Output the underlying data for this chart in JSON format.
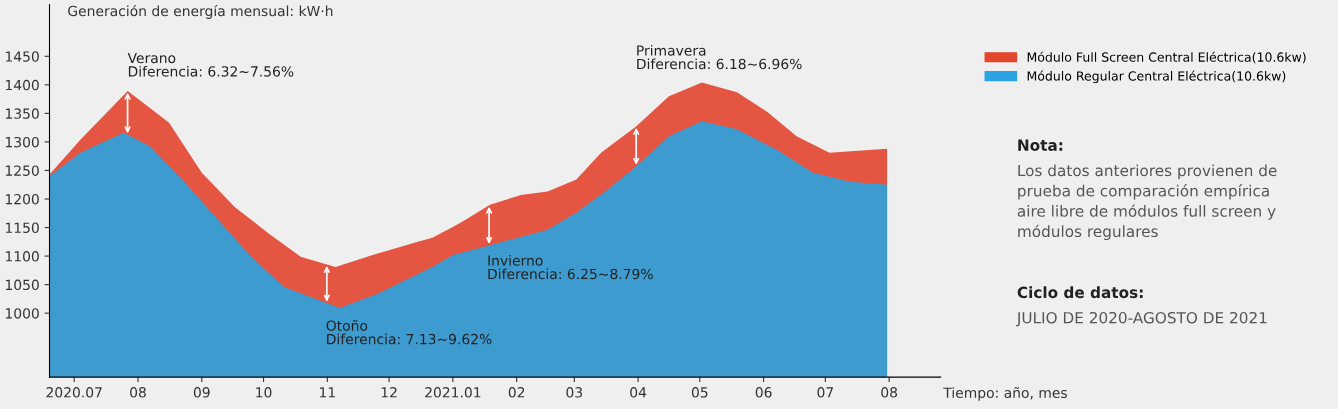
{
  "chart_data": {
    "type": "area",
    "ylabel": "Generación de energía mensual: kW·h",
    "xlabel": "Tiempo: año, mes",
    "series": [
      {
        "name": "Módulo Full Screen Central Eléctrica(10.6kw)",
        "color": "#e3452f",
        "x": [
          "2020-06-19",
          "2020-07-04",
          "2020-07-27",
          "2020-08-16",
          "2020-09-01",
          "2020-09-17",
          "2020-10-03",
          "2020-10-19",
          "2020-11-05",
          "2020-11-23",
          "2020-12-15",
          "2020-12-22",
          "2021-01-01",
          "2021-01-07",
          "2021-01-19",
          "2021-02-03",
          "2021-02-16",
          "2021-03-02",
          "2021-03-14",
          "2021-03-31",
          "2021-04-16",
          "2021-05-02",
          "2021-05-19",
          "2021-06-03",
          "2021-06-17",
          "2021-07-03",
          "2021-07-31"
        ],
        "values": [
          1243,
          1304,
          1389,
          1334,
          1246,
          1186,
          1141,
          1099,
          1081,
          1102,
          1125,
          1132,
          1151,
          1163,
          1190,
          1207,
          1213,
          1234,
          1281,
          1327,
          1380,
          1404,
          1387,
          1352,
          1310,
          1281,
          1288
        ]
      },
      {
        "name": "Módulo Regular Central Eléctrica(10.6kw)",
        "color": "#2aa3e0",
        "x": [
          "2020-06-19",
          "2020-07-04",
          "2020-07-25",
          "2020-08-07",
          "2020-08-24",
          "2020-09-09",
          "2020-09-25",
          "2020-10-11",
          "2020-11-07",
          "2020-11-26",
          "2020-12-22",
          "2021-01-01",
          "2021-01-20",
          "2021-02-16",
          "2021-03-02",
          "2021-03-16",
          "2021-03-31",
          "2021-04-16",
          "2021-05-02",
          "2021-05-19",
          "2021-06-07",
          "2021-06-25",
          "2021-07-13",
          "2021-07-31"
        ],
        "values": [
          1240,
          1281,
          1316,
          1292,
          1228,
          1163,
          1099,
          1046,
          1009,
          1035,
          1081,
          1102,
          1120,
          1146,
          1176,
          1213,
          1257,
          1310,
          1336,
          1322,
          1287,
          1246,
          1230,
          1225
        ]
      }
    ],
    "xlim": [
      "2020-06-19",
      "2021-08-26"
    ],
    "xticks": [
      {
        "value": "2020-07",
        "label": "2020.07"
      },
      {
        "value": "2020-08",
        "label": "08"
      },
      {
        "value": "2020-09",
        "label": "09"
      },
      {
        "value": "2020-10",
        "label": "10"
      },
      {
        "value": "2020-11",
        "label": "11"
      },
      {
        "value": "2020-12",
        "label": "12"
      },
      {
        "value": "2021-01",
        "label": "2021.01"
      },
      {
        "value": "2021-02",
        "label": "02"
      },
      {
        "value": "2021-03",
        "label": "03"
      },
      {
        "value": "2021-04",
        "label": "04"
      },
      {
        "value": "2021-05",
        "label": "05"
      },
      {
        "value": "2021-06",
        "label": "06"
      },
      {
        "value": "2021-07",
        "label": "07"
      },
      {
        "value": "2021-08",
        "label": "08"
      }
    ],
    "ylim": [
      888,
      1540
    ],
    "yticks": [
      1000,
      1050,
      1100,
      1150,
      1200,
      1250,
      1300,
      1350,
      1400,
      1450
    ],
    "legend": "top right",
    "annotations": [
      "Verano\nDiferencia: 6.32~7.56%",
      "Otoño\nDiferencia: 7.13~9.62%",
      "Invierno\nDiferencia: 6.25~8.79%",
      "Primavera\nDiferencia: 6.18~6.96%",
      "Nota:",
      "Los datos anteriores provienen de\nprueba de comparación empírica\naire libre de módulos full screen y\nmódulos regulares",
      "Ciclo de datos:",
      "JULIO DE 2020-AGOSTO DE 2021"
    ]
  }
}
